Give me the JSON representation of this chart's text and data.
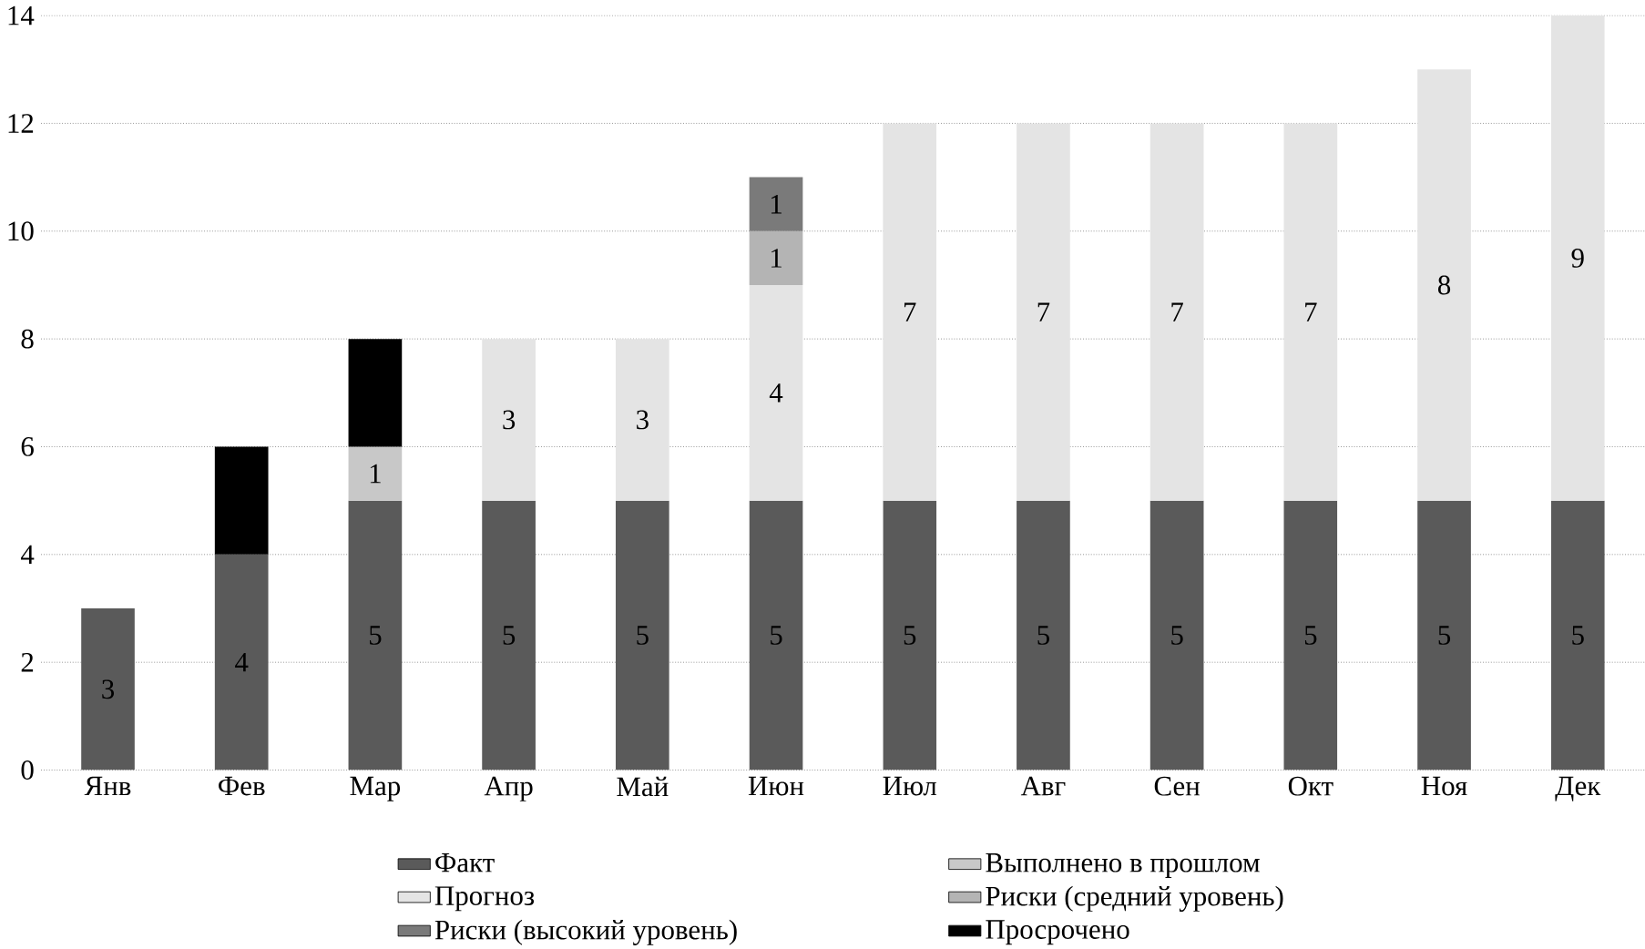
{
  "chart_data": {
    "type": "bar",
    "stacked": true,
    "categories": [
      "Янв",
      "Фев",
      "Мар",
      "Апр",
      "Май",
      "Июн",
      "Июл",
      "Авг",
      "Сен",
      "Окт",
      "Ноя",
      "Дек"
    ],
    "series": [
      {
        "name": "Факт",
        "color": "#5a5a5a",
        "values": [
          3,
          4,
          5,
          5,
          5,
          5,
          5,
          5,
          5,
          5,
          5,
          5
        ],
        "value_labels": [
          "3",
          "4",
          "5",
          "5",
          "5",
          "5",
          "5",
          "5",
          "5",
          "5",
          "5",
          "5"
        ]
      },
      {
        "name": "Выполнено в прошлом",
        "color": "#c8c8c8",
        "values": [
          null,
          null,
          1,
          null,
          null,
          null,
          null,
          null,
          null,
          null,
          null,
          null
        ],
        "value_labels": [
          null,
          null,
          "1",
          null,
          null,
          null,
          null,
          null,
          null,
          null,
          null,
          null
        ]
      },
      {
        "name": "Прогноз",
        "color": "#e4e4e4",
        "values": [
          null,
          null,
          null,
          3,
          3,
          4,
          7,
          7,
          7,
          7,
          8,
          9
        ],
        "value_labels": [
          null,
          null,
          null,
          "3",
          "3",
          "4",
          "7",
          "7",
          "7",
          "7",
          "8",
          "9"
        ]
      },
      {
        "name": "Риски (средний уровень)",
        "color": "#b4b4b4",
        "values": [
          null,
          null,
          null,
          null,
          null,
          1,
          null,
          null,
          null,
          null,
          null,
          null
        ],
        "value_labels": [
          null,
          null,
          null,
          null,
          null,
          "1",
          null,
          null,
          null,
          null,
          null,
          null
        ]
      },
      {
        "name": "Риски (высокий уровень)",
        "color": "#7a7a7a",
        "values": [
          null,
          null,
          null,
          null,
          null,
          1,
          null,
          null,
          null,
          null,
          null,
          null
        ],
        "value_labels": [
          null,
          null,
          null,
          null,
          null,
          "1",
          null,
          null,
          null,
          null,
          null,
          null
        ]
      },
      {
        "name": "Просрочено",
        "color": "#000000",
        "values": [
          null,
          2,
          2,
          null,
          null,
          null,
          null,
          null,
          null,
          null,
          null,
          null
        ]
      }
    ],
    "ylim": [
      0,
      14
    ],
    "yticks": [
      0,
      2,
      4,
      6,
      8,
      10,
      12,
      14
    ],
    "grid": "y",
    "legend": "bottom"
  }
}
